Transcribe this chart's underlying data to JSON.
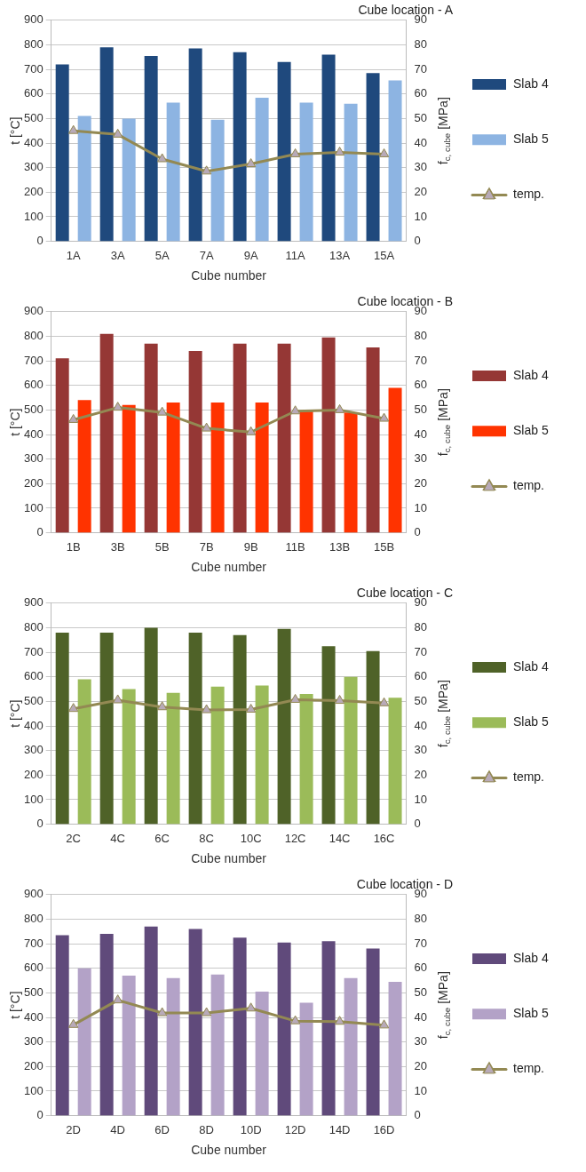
{
  "chart_data": [
    {
      "type": "bar",
      "title": "Cube location - A",
      "xlabel": "Cube number",
      "ylabel": "t [°C]",
      "y2label": "f$_{c, cube}$ [MPa]",
      "categories": [
        "1A",
        "3A",
        "5A",
        "7A",
        "9A",
        "11A",
        "13A",
        "15A"
      ],
      "series": [
        {
          "name": "Slab 4",
          "color": "#1f497d",
          "axis": "y2",
          "values": [
            72,
            79,
            75.5,
            78.5,
            77,
            73,
            76,
            68.5
          ]
        },
        {
          "name": "Slab 5",
          "color": "#8db4e2",
          "axis": "y2",
          "values": [
            51,
            50,
            56.5,
            49.5,
            58.5,
            56.5,
            56,
            65.5
          ]
        },
        {
          "name": "temp.",
          "type": "line",
          "color": "#938953",
          "values": [
            450,
            435,
            335,
            285,
            315,
            355,
            362,
            355
          ]
        }
      ],
      "ylim": [
        0,
        900
      ],
      "yticks": [
        0,
        100,
        200,
        300,
        400,
        500,
        600,
        700,
        800,
        900
      ],
      "y2lim": [
        0,
        90
      ],
      "y2ticks": [
        0,
        10,
        20,
        30,
        40,
        50,
        60,
        70,
        80,
        90
      ],
      "grid": "y",
      "legend": "right",
      "marker": "triangle"
    },
    {
      "type": "bar",
      "title": "Cube location - B",
      "xlabel": "Cube number",
      "ylabel": "t [°C]",
      "y2label": "f$_{c, cube}$ [MPa]",
      "categories": [
        "1B",
        "3B",
        "5B",
        "7B",
        "9B",
        "11B",
        "13B",
        "15B"
      ],
      "series": [
        {
          "name": "Slab 4",
          "color": "#953735",
          "axis": "y2",
          "values": [
            71,
            81,
            77,
            74,
            77,
            77,
            79.5,
            75.5
          ]
        },
        {
          "name": "Slab 5",
          "color": "#ff3300",
          "axis": "y2",
          "values": [
            54,
            52,
            53,
            53,
            53,
            49.5,
            49,
            59
          ]
        },
        {
          "name": "temp.",
          "type": "line",
          "color": "#938953",
          "values": [
            460,
            510,
            490,
            425,
            410,
            495,
            500,
            465
          ]
        }
      ],
      "ylim": [
        0,
        900
      ],
      "yticks": [
        0,
        100,
        200,
        300,
        400,
        500,
        600,
        700,
        800,
        900
      ],
      "y2lim": [
        0,
        90
      ],
      "y2ticks": [
        0,
        10,
        20,
        30,
        40,
        50,
        60,
        70,
        80,
        90
      ],
      "grid": "y",
      "legend": "right",
      "marker": "triangle"
    },
    {
      "type": "bar",
      "title": "Cube location - C",
      "xlabel": "Cube number",
      "ylabel": "t [°C]",
      "y2label": "f$_{c, cube}$ [MPa]",
      "categories": [
        "2C",
        "4C",
        "6C",
        "8C",
        "10C",
        "12C",
        "14C",
        "16C"
      ],
      "series": [
        {
          "name": "Slab 4",
          "color": "#4f6228",
          "axis": "y2",
          "values": [
            78,
            78,
            80,
            78,
            77,
            79.5,
            72.5,
            70.5
          ]
        },
        {
          "name": "Slab 5",
          "color": "#9bbb59",
          "axis": "y2",
          "values": [
            59,
            55,
            53.5,
            56,
            56.5,
            53,
            60,
            51.5
          ]
        },
        {
          "name": "temp.",
          "type": "line",
          "color": "#938953",
          "values": [
            470,
            505,
            477,
            465,
            467,
            507,
            503,
            493
          ]
        }
      ],
      "ylim": [
        0,
        900
      ],
      "yticks": [
        0,
        100,
        200,
        300,
        400,
        500,
        600,
        700,
        800,
        900
      ],
      "y2lim": [
        0,
        90
      ],
      "y2ticks": [
        0,
        10,
        20,
        30,
        40,
        50,
        60,
        70,
        80,
        90
      ],
      "grid": "y",
      "legend": "right",
      "marker": "triangle"
    },
    {
      "type": "bar",
      "title": "Cube location - D",
      "xlabel": "Cube number",
      "ylabel": "t [°C]",
      "y2label": "f$_{c, cube}$ [MPa]",
      "categories": [
        "2D",
        "4D",
        "6D",
        "8D",
        "10D",
        "12D",
        "14D",
        "16D"
      ],
      "series": [
        {
          "name": "Slab 4",
          "color": "#604a7b",
          "axis": "y2",
          "values": [
            73.5,
            74,
            77,
            76,
            72.5,
            70.5,
            71,
            68
          ]
        },
        {
          "name": "Slab 5",
          "color": "#b3a2c7",
          "axis": "y2",
          "values": [
            60,
            57,
            56,
            57.5,
            50.5,
            46,
            56,
            54.5
          ]
        },
        {
          "name": "temp.",
          "type": "line",
          "color": "#938953",
          "values": [
            370,
            470,
            418,
            418,
            437,
            385,
            383,
            368
          ]
        }
      ],
      "ylim": [
        0,
        900
      ],
      "yticks": [
        0,
        100,
        200,
        300,
        400,
        500,
        600,
        700,
        800,
        900
      ],
      "y2lim": [
        0,
        90
      ],
      "y2ticks": [
        0,
        10,
        20,
        30,
        40,
        50,
        60,
        70,
        80,
        90
      ],
      "grid": "y",
      "legend": "right",
      "marker": "triangle"
    }
  ]
}
